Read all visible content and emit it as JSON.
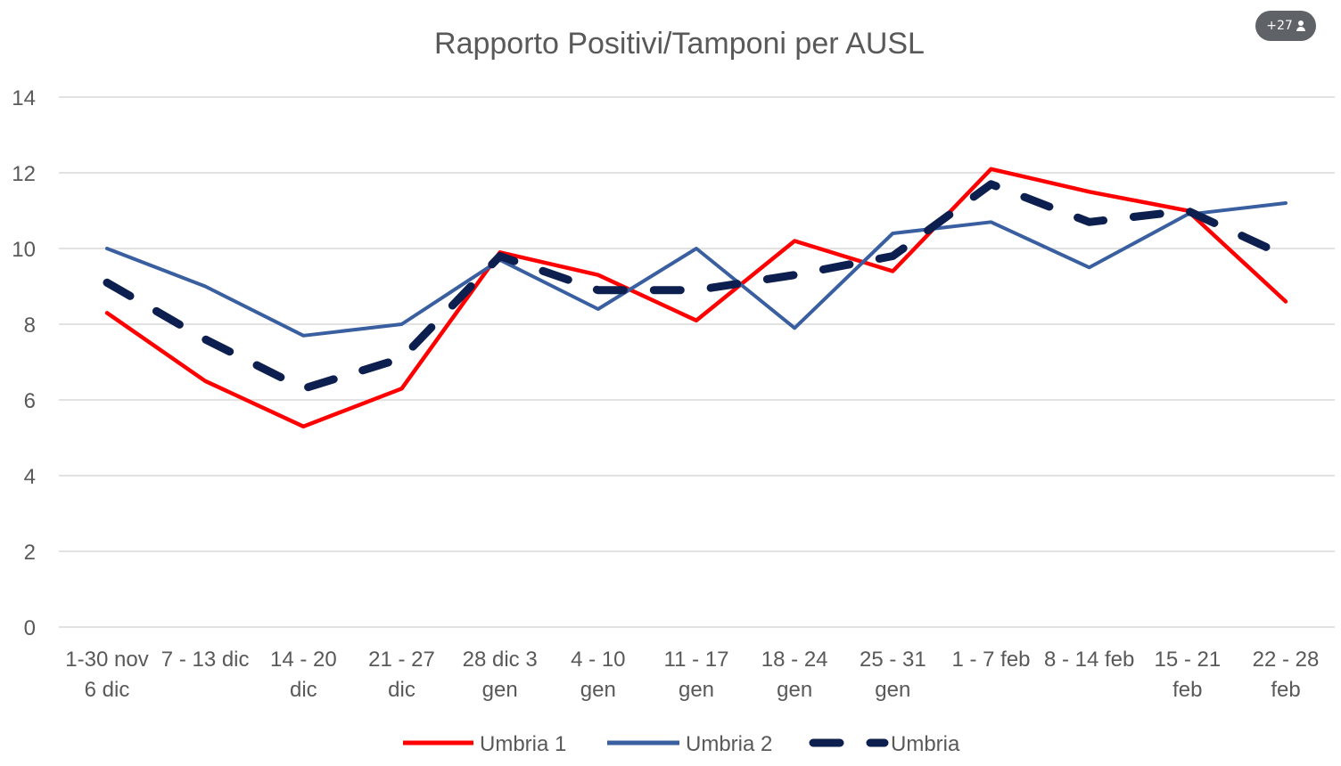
{
  "participants_badge": {
    "label": "+27",
    "icon": "person-icon"
  },
  "chart_data": {
    "type": "line",
    "title": "Rapporto Positivi/Tamponi per AUSL",
    "xlabel": "",
    "ylabel": "",
    "ylim": [
      0,
      14
    ],
    "yticks": [
      "0",
      "2",
      "4",
      "6",
      "8",
      "10",
      "12",
      "14"
    ],
    "grid": true,
    "legend_position": "bottom",
    "categories": [
      [
        "1-30 nov",
        "6 dic"
      ],
      [
        "7 - 13 dic"
      ],
      [
        "14 - 20",
        "dic"
      ],
      [
        "21 - 27",
        "dic"
      ],
      [
        "28 dic 3",
        "gen"
      ],
      [
        "4 - 10",
        "gen"
      ],
      [
        "11 - 17",
        "gen"
      ],
      [
        "18 - 24",
        "gen"
      ],
      [
        "25 - 31",
        "gen"
      ],
      [
        "1 - 7 feb"
      ],
      [
        "8 - 14 feb"
      ],
      [
        "15 - 21",
        "feb"
      ],
      [
        "22 - 28",
        "feb"
      ]
    ],
    "series": [
      {
        "name": "Umbria 1",
        "color": "#ff0000",
        "style": "solid",
        "values": [
          8.3,
          6.5,
          5.3,
          6.3,
          9.9,
          9.3,
          8.1,
          10.2,
          9.4,
          12.1,
          11.5,
          11.0,
          8.6
        ]
      },
      {
        "name": "Umbria 2",
        "color": "#3a5fa0",
        "style": "solid",
        "values": [
          10.0,
          9.0,
          7.7,
          8.0,
          9.7,
          8.4,
          10.0,
          7.9,
          10.4,
          10.7,
          9.5,
          10.9,
          11.2
        ]
      },
      {
        "name": "Umbria",
        "color": "#0d1f4f",
        "style": "dashed",
        "values": [
          9.1,
          7.6,
          6.3,
          7.1,
          9.8,
          8.9,
          8.9,
          9.3,
          9.8,
          11.7,
          10.7,
          11.0,
          9.8
        ]
      }
    ]
  }
}
